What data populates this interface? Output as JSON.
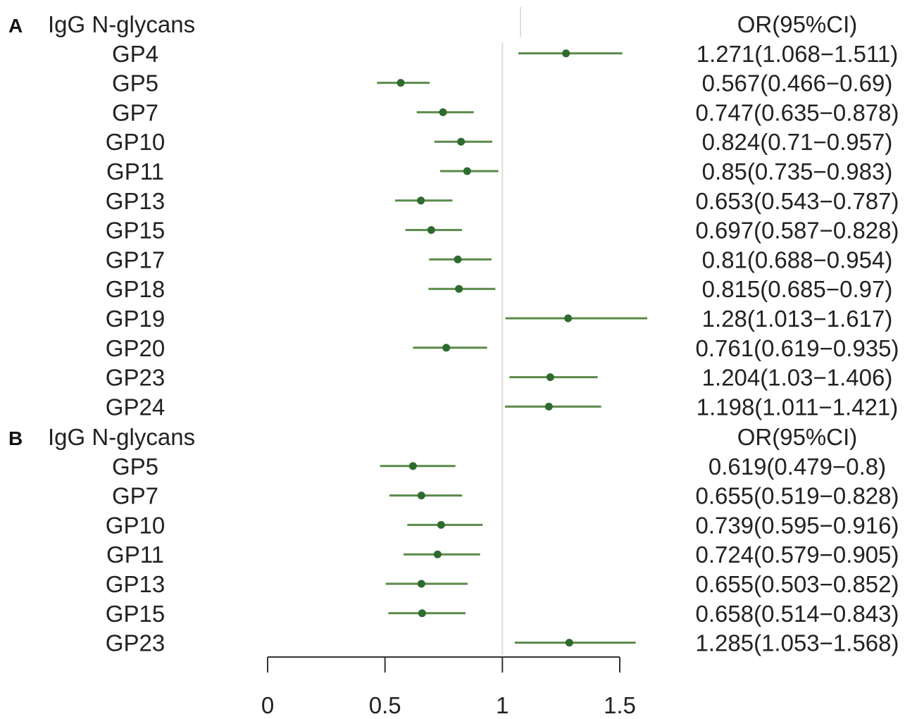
{
  "chart_data": [
    {
      "type": "forest",
      "panel": "A",
      "label_header": "IgG N-glycans",
      "value_header": "OR(95%CI)",
      "reference_line": 1,
      "rows": [
        {
          "label": "GP4",
          "or": 1.271,
          "lo": 1.068,
          "hi": 1.511,
          "text": "1.271(1.068−1.511)"
        },
        {
          "label": "GP5",
          "or": 0.567,
          "lo": 0.466,
          "hi": 0.69,
          "text": "0.567(0.466−0.69)"
        },
        {
          "label": "GP7",
          "or": 0.747,
          "lo": 0.635,
          "hi": 0.878,
          "text": "0.747(0.635−0.878)"
        },
        {
          "label": "GP10",
          "or": 0.824,
          "lo": 0.71,
          "hi": 0.957,
          "text": "0.824(0.71−0.957)"
        },
        {
          "label": "GP11",
          "or": 0.85,
          "lo": 0.735,
          "hi": 0.983,
          "text": "0.85(0.735−0.983)"
        },
        {
          "label": "GP13",
          "or": 0.653,
          "lo": 0.543,
          "hi": 0.787,
          "text": "0.653(0.543−0.787)"
        },
        {
          "label": "GP15",
          "or": 0.697,
          "lo": 0.587,
          "hi": 0.828,
          "text": "0.697(0.587−0.828)"
        },
        {
          "label": "GP17",
          "or": 0.81,
          "lo": 0.688,
          "hi": 0.954,
          "text": "0.81(0.688−0.954)"
        },
        {
          "label": "GP18",
          "or": 0.815,
          "lo": 0.685,
          "hi": 0.97,
          "text": "0.815(0.685−0.97)"
        },
        {
          "label": "GP19",
          "or": 1.28,
          "lo": 1.013,
          "hi": 1.617,
          "text": "1.28(1.013−1.617)"
        },
        {
          "label": "GP20",
          "or": 0.761,
          "lo": 0.619,
          "hi": 0.935,
          "text": "0.761(0.619−0.935)"
        },
        {
          "label": "GP23",
          "or": 1.204,
          "lo": 1.03,
          "hi": 1.406,
          "text": "1.204(1.03−1.406)"
        },
        {
          "label": "GP24",
          "or": 1.198,
          "lo": 1.011,
          "hi": 1.421,
          "text": "1.198(1.011−1.421)"
        }
      ]
    },
    {
      "type": "forest",
      "panel": "B",
      "label_header": "IgG N-glycans",
      "value_header": "OR(95%CI)",
      "reference_line": 1,
      "rows": [
        {
          "label": "GP5",
          "or": 0.619,
          "lo": 0.479,
          "hi": 0.8,
          "text": "0.619(0.479−0.8)"
        },
        {
          "label": "GP7",
          "or": 0.655,
          "lo": 0.519,
          "hi": 0.828,
          "text": "0.655(0.519−0.828)"
        },
        {
          "label": "GP10",
          "or": 0.739,
          "lo": 0.595,
          "hi": 0.916,
          "text": "0.739(0.595−0.916)"
        },
        {
          "label": "GP11",
          "or": 0.724,
          "lo": 0.579,
          "hi": 0.905,
          "text": "0.724(0.579−0.905)"
        },
        {
          "label": "GP13",
          "or": 0.655,
          "lo": 0.503,
          "hi": 0.852,
          "text": "0.655(0.503−0.852)"
        },
        {
          "label": "GP15",
          "or": 0.658,
          "lo": 0.514,
          "hi": 0.843,
          "text": "0.658(0.514−0.843)"
        },
        {
          "label": "GP23",
          "or": 1.285,
          "lo": 1.053,
          "hi": 1.568,
          "text": "1.285(1.053−1.568)"
        }
      ]
    }
  ],
  "x_axis": {
    "ticks": [
      0,
      0.5,
      1,
      1.5
    ],
    "tick_labels": [
      "0",
      "0.5",
      "1",
      "1.5"
    ],
    "xlim": [
      0,
      1.5
    ]
  },
  "colors": {
    "ci_line": "#5a8a4a",
    "point": "#2e6b2e",
    "reference_line": "#dddddd",
    "axis": "#333333",
    "text": "#222222"
  }
}
